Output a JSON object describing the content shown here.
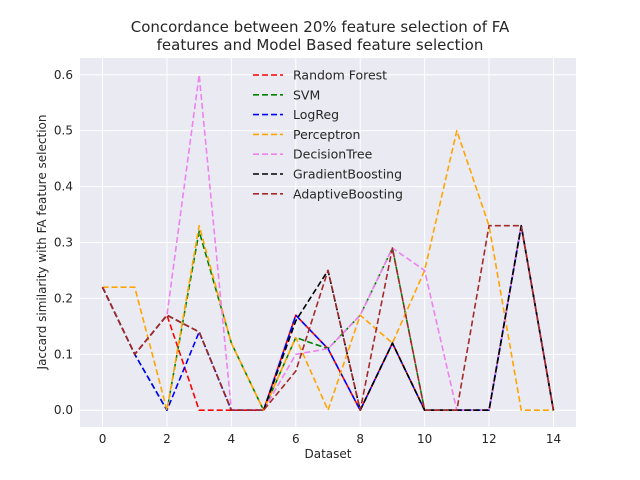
{
  "chart_data": {
    "type": "line",
    "title": [
      "Concordance between 20% feature selection of FA",
      "features and Model Based feature selection"
    ],
    "xlabel": "Dataset",
    "ylabel": "Jaccard similarity with FA feature selection",
    "xlim": [
      -0.7,
      14.7
    ],
    "ylim": [
      -0.03,
      0.63
    ],
    "xticks": [
      0,
      2,
      4,
      6,
      8,
      10,
      12,
      14
    ],
    "yticks": [
      0.0,
      0.1,
      0.2,
      0.3,
      0.4,
      0.5,
      0.6
    ],
    "ytick_labels": [
      "0.0",
      "0.1",
      "0.2",
      "0.3",
      "0.4",
      "0.5",
      "0.6"
    ],
    "grid": true,
    "legend_position": "top-center",
    "line_style": "dashed",
    "x": [
      0,
      1,
      2,
      3,
      4,
      5,
      6,
      7,
      8,
      9,
      10,
      11,
      12,
      13,
      14
    ],
    "series": [
      {
        "name": "Random Forest",
        "color": "#ff0000",
        "values": [
          0.22,
          0.1,
          0.17,
          0.0,
          0.0,
          0.0,
          0.17,
          0.11,
          0.0,
          0.12,
          0.0,
          0.0,
          0.0,
          0.33,
          0.0
        ]
      },
      {
        "name": "SVM",
        "color": "#008000",
        "values": [
          0.22,
          0.1,
          0.0,
          0.32,
          0.12,
          0.0,
          0.13,
          0.11,
          0.17,
          0.29,
          0.0,
          0.0,
          0.0,
          0.33,
          0.0
        ]
      },
      {
        "name": "LogReg",
        "color": "#0000ff",
        "values": [
          0.22,
          0.1,
          0.0,
          0.14,
          0.0,
          0.0,
          0.17,
          0.11,
          0.0,
          0.12,
          0.0,
          0.0,
          0.0,
          0.33,
          0.0
        ]
      },
      {
        "name": "Perceptron",
        "color": "#ffa500",
        "values": [
          0.22,
          0.22,
          0.0,
          0.33,
          0.12,
          0.0,
          0.13,
          0.0,
          0.17,
          0.12,
          0.25,
          0.5,
          0.33,
          0.0,
          0.0
        ]
      },
      {
        "name": "DecisionTree",
        "color": "#ee82ee",
        "values": [
          0.22,
          0.1,
          0.17,
          0.6,
          0.0,
          0.0,
          0.1,
          0.11,
          0.17,
          0.29,
          0.25,
          0.0,
          0.0,
          0.33,
          0.0
        ]
      },
      {
        "name": "GradientBoosting",
        "color": "#000000",
        "values": [
          0.22,
          0.1,
          0.17,
          0.14,
          0.0,
          0.0,
          0.16,
          0.25,
          0.0,
          0.12,
          0.0,
          0.0,
          0.0,
          0.33,
          0.0
        ]
      },
      {
        "name": "AdaptiveBoosting",
        "color": "#a52a2a",
        "values": [
          0.22,
          0.1,
          0.17,
          0.14,
          0.0,
          0.0,
          0.07,
          0.25,
          0.0,
          0.29,
          0.0,
          0.0,
          0.33,
          0.33,
          0.0
        ]
      }
    ]
  }
}
